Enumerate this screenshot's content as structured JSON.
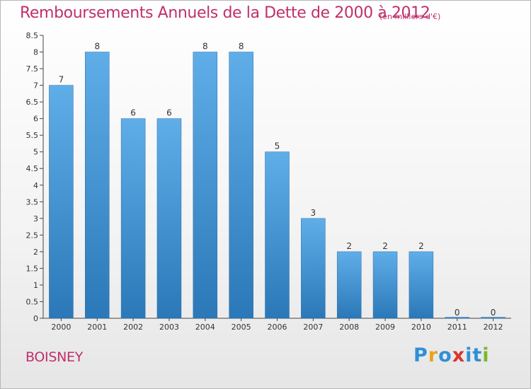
{
  "title": "Remboursements Annuels de la Dette de 2000 à 2012",
  "unit_note": "(en milliers d'€)",
  "commune": "BOISNEY",
  "brand": {
    "letters": [
      "P",
      "r",
      "o",
      "x",
      "i",
      "t",
      "i"
    ],
    "colors": [
      "#2f8fd8",
      "#e8a41f",
      "#2f8fd8",
      "#d9342b",
      "#2f8fd8",
      "#2f8fd8",
      "#7ab828"
    ]
  },
  "colors": {
    "bar_top": "#5faee8",
    "bar_bottom": "#2b78b8",
    "text_accent": "#c0306a",
    "axis": "#444444"
  },
  "chart_data": {
    "type": "bar",
    "categories": [
      "2000",
      "2001",
      "2002",
      "2003",
      "2004",
      "2005",
      "2006",
      "2007",
      "2008",
      "2009",
      "2010",
      "2011",
      "2012"
    ],
    "values": [
      7,
      8,
      6,
      6,
      8,
      8,
      5,
      3,
      2,
      2,
      2,
      0,
      0
    ],
    "data_labels": [
      "7",
      "8",
      "6",
      "6",
      "8",
      "8",
      "5",
      "3",
      "2",
      "2",
      "2",
      "0",
      "0"
    ],
    "title": "Remboursements Annuels de la Dette de 2000 à 2012",
    "xlabel": "",
    "ylabel": "",
    "ylim": [
      0,
      8.5
    ],
    "y_ticks": [
      "0",
      "0.5",
      "1",
      "1.5",
      "2",
      "2.5",
      "3",
      "3.5",
      "4",
      "4.5",
      "5",
      "5.5",
      "6",
      "6.5",
      "7",
      "7.5",
      "8",
      "8.5"
    ],
    "grid": false,
    "legend": "none"
  }
}
